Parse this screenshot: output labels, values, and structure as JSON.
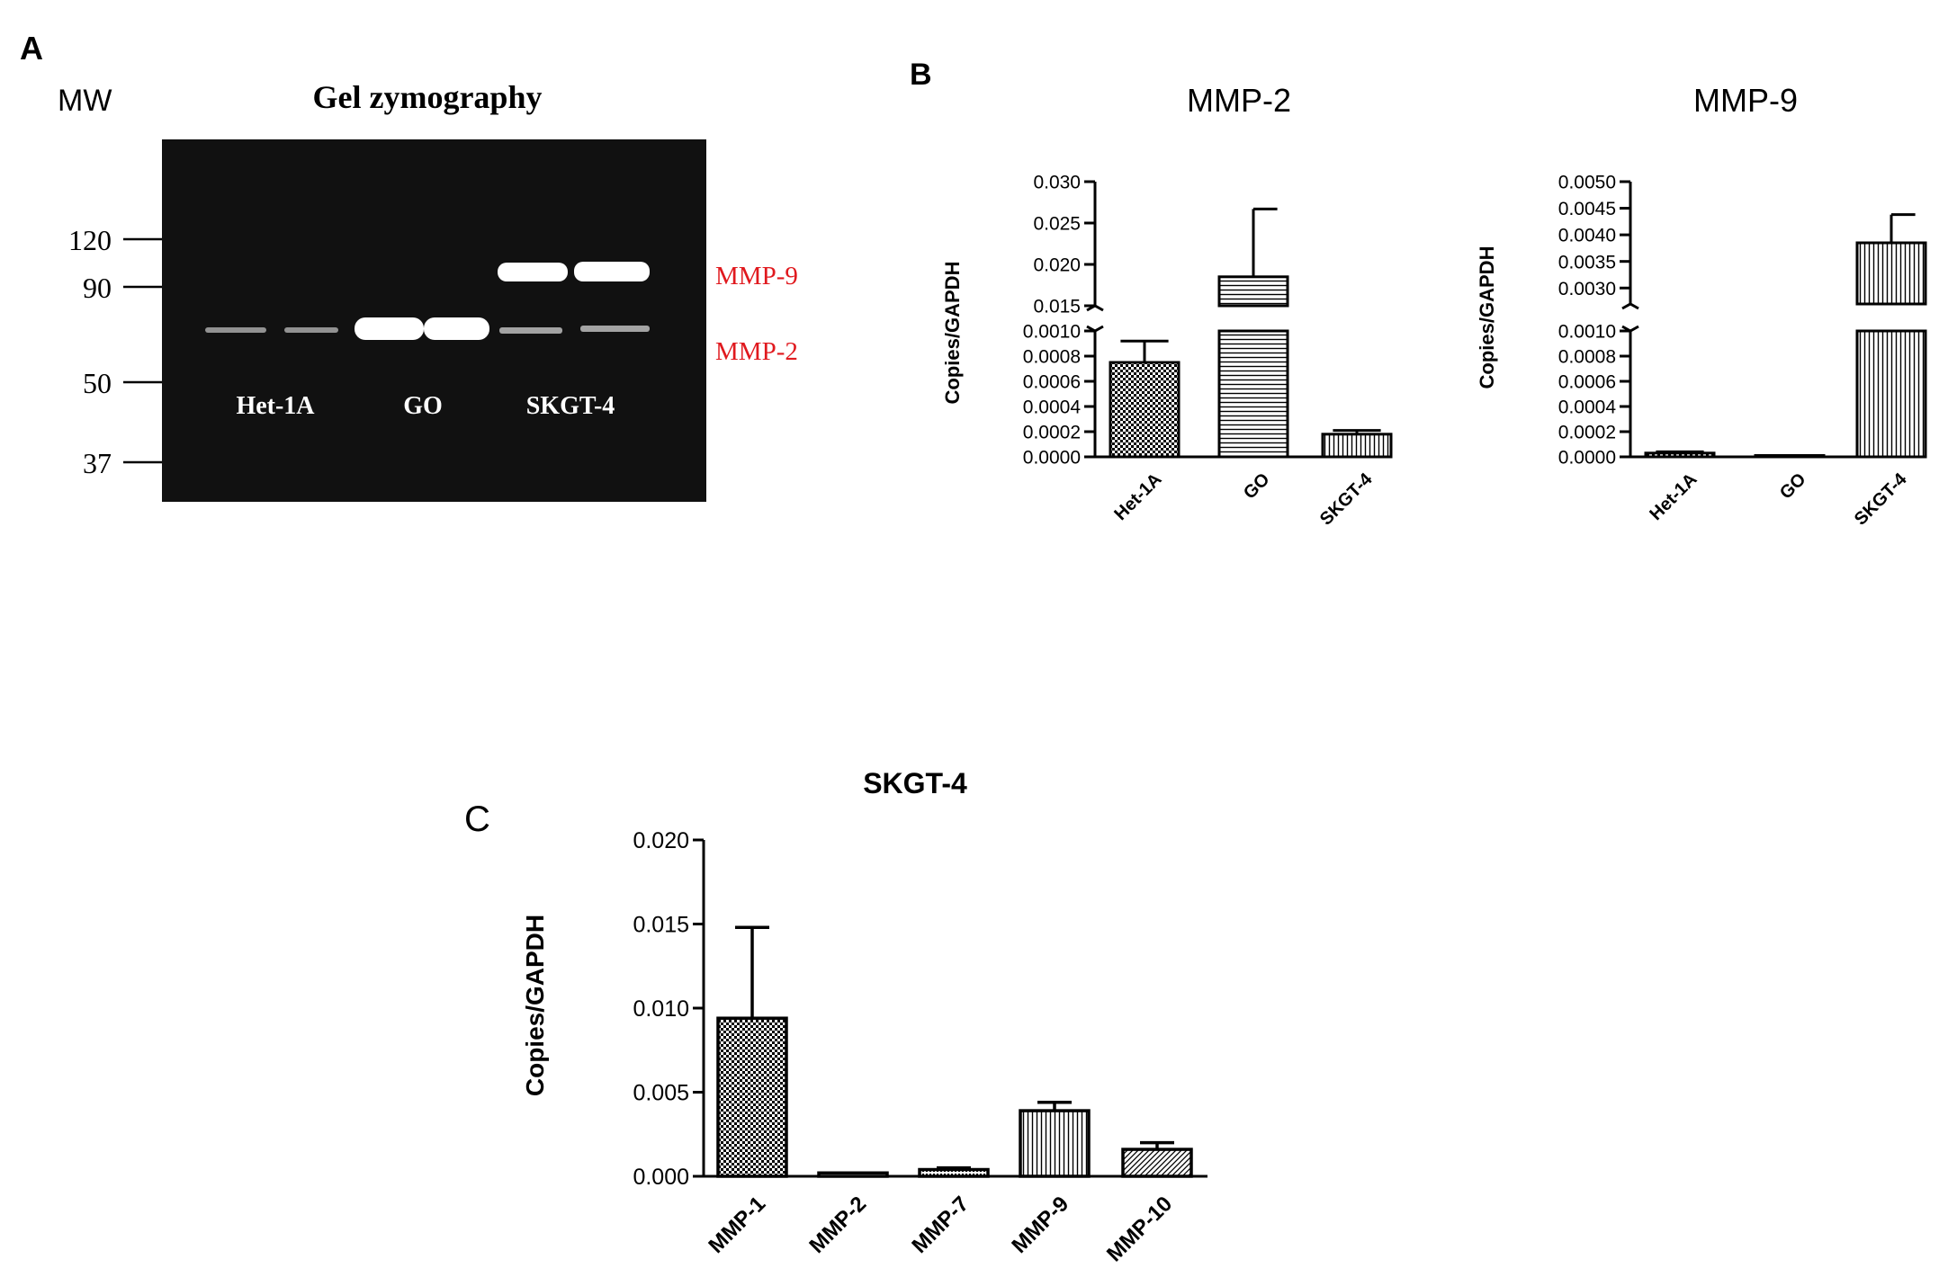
{
  "panelA": {
    "letter": "A",
    "mw_label": "MW",
    "title": "Gel zymography",
    "mw_markers": [
      "120",
      "90",
      "50",
      "37"
    ],
    "lane_groups": [
      "Het-1A",
      "GO",
      "SKGT-4"
    ],
    "band_labels": [
      "MMP-9",
      "MMP-2"
    ],
    "colors": {
      "gel": "#111111",
      "band": "#ffffff",
      "band_label": "#e0191e"
    }
  },
  "panelB": {
    "letter": "B"
  },
  "panelC": {
    "letter": "C"
  },
  "chart_data": [
    {
      "id": "B-MMP-2",
      "type": "bar",
      "title": "MMP-2",
      "ylabel": "Copies/GAPDH",
      "categories": [
        "Het-1A",
        "GO",
        "SKGT-4"
      ],
      "values": [
        0.00075,
        0.0185,
        0.00018
      ],
      "errors": [
        0.00017,
        0.0082,
        3e-05
      ],
      "broken_axis": {
        "lower": {
          "range": [
            0,
            0.001
          ],
          "ticks": [
            "0.0000",
            "0.0002",
            "0.0004",
            "0.0006",
            "0.0008",
            "0.0010"
          ]
        },
        "upper": {
          "range": [
            0.015,
            0.03
          ],
          "ticks": [
            "0.015",
            "0.020",
            "0.025",
            "0.030"
          ]
        }
      },
      "patterns": [
        "checker",
        "hlines",
        "vlines"
      ]
    },
    {
      "id": "B-MMP-9",
      "type": "bar",
      "title": "MMP-9",
      "ylabel": "Copies/GAPDH",
      "categories": [
        "Het-1A",
        "GO",
        "SKGT-4"
      ],
      "values": [
        3e-05,
        0.0,
        0.00385
      ],
      "errors": [
        1e-05,
        0.0,
        0.00053
      ],
      "broken_axis": {
        "lower": {
          "range": [
            0,
            0.001
          ],
          "ticks": [
            "0.0000",
            "0.0002",
            "0.0004",
            "0.0006",
            "0.0008",
            "0.0010"
          ]
        },
        "upper": {
          "range": [
            0.0027,
            0.005
          ],
          "ticks": [
            "0.0030",
            "0.0035",
            "0.0040",
            "0.0045",
            "0.0050"
          ]
        }
      },
      "patterns": [
        "checker",
        "hlines",
        "vlines"
      ]
    },
    {
      "id": "C-SKGT-4",
      "type": "bar",
      "title": "SKGT-4",
      "ylabel": "Copies/GAPDH",
      "categories": [
        "MMP-1",
        "MMP-2",
        "MMP-7",
        "MMP-9",
        "MMP-10"
      ],
      "values": [
        0.0094,
        0.0002,
        0.0004,
        0.0039,
        0.0016
      ],
      "errors": [
        0.0054,
        0.0,
        0.0001,
        0.0005,
        0.0004
      ],
      "ylim": [
        0,
        0.02
      ],
      "ticks": [
        "0.000",
        "0.005",
        "0.010",
        "0.015",
        "0.020"
      ],
      "patterns": [
        "checker",
        "hlines",
        "dots",
        "vlines",
        "diag"
      ]
    }
  ]
}
